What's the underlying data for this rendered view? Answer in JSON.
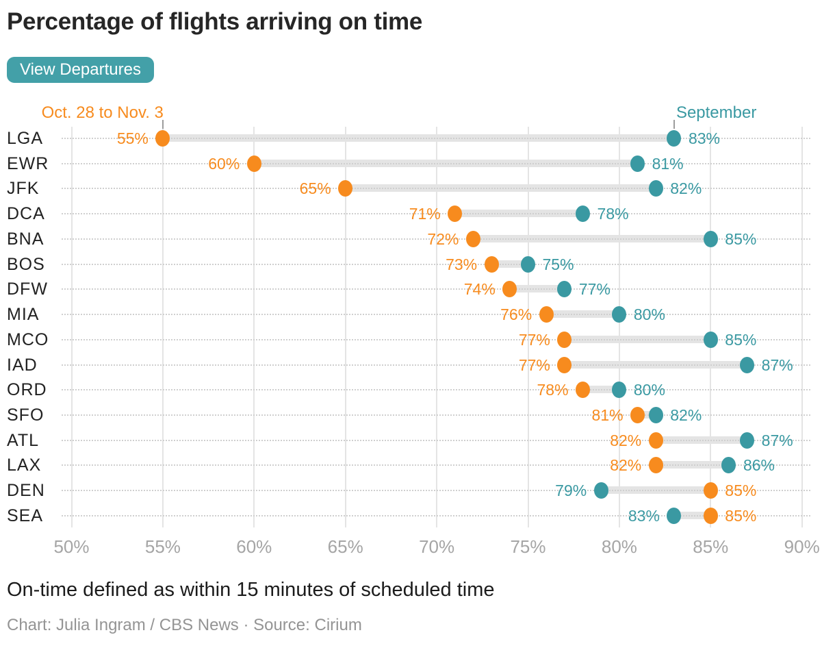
{
  "header": {
    "title": "Percentage of flights arriving on time"
  },
  "controls": {
    "view_departures_button": "View Departures"
  },
  "chart_data": {
    "type": "dumbbell",
    "title": "Percentage of flights arriving on time",
    "categories": [
      "LGA",
      "EWR",
      "JFK",
      "DCA",
      "BNA",
      "BOS",
      "DFW",
      "MIA",
      "MCO",
      "IAD",
      "ORD",
      "SFO",
      "ATL",
      "LAX",
      "DEN",
      "SEA"
    ],
    "series": [
      {
        "id": "oct28-nov3",
        "name": "Oct. 28 to Nov. 3",
        "color": "#f78b1e",
        "values": [
          55,
          60,
          65,
          71,
          72,
          73,
          74,
          76,
          77,
          77,
          78,
          81,
          82,
          82,
          85,
          85
        ]
      },
      {
        "id": "september",
        "name": "September",
        "color": "#3a99a2",
        "values": [
          83,
          81,
          82,
          78,
          85,
          75,
          77,
          80,
          85,
          87,
          80,
          82,
          87,
          86,
          79,
          83
        ]
      }
    ],
    "value_suffix": "%",
    "xticks": [
      50,
      55,
      60,
      65,
      70,
      75,
      80,
      85,
      90
    ],
    "xlim": [
      50,
      90
    ],
    "legend_position": "top",
    "grid": {
      "vertical": "solid",
      "horizontal": "dotted"
    }
  },
  "colors": {
    "button_bg": "#43a0a8",
    "button_text": "#ffffff",
    "gridline": "#e4e4e4",
    "row_dotline": "#cfcfcf",
    "connector_band": "#e4e4e4",
    "axis_text": "#a5a5a5",
    "row_text": "#222222",
    "title_text": "#262626",
    "note_text": "#1b1b1b",
    "credit_text": "#949494"
  },
  "footer": {
    "note": "On-time defined as within 15 minutes of scheduled time",
    "credit": "Chart: Julia Ingram / CBS News · Source: Cirium"
  }
}
